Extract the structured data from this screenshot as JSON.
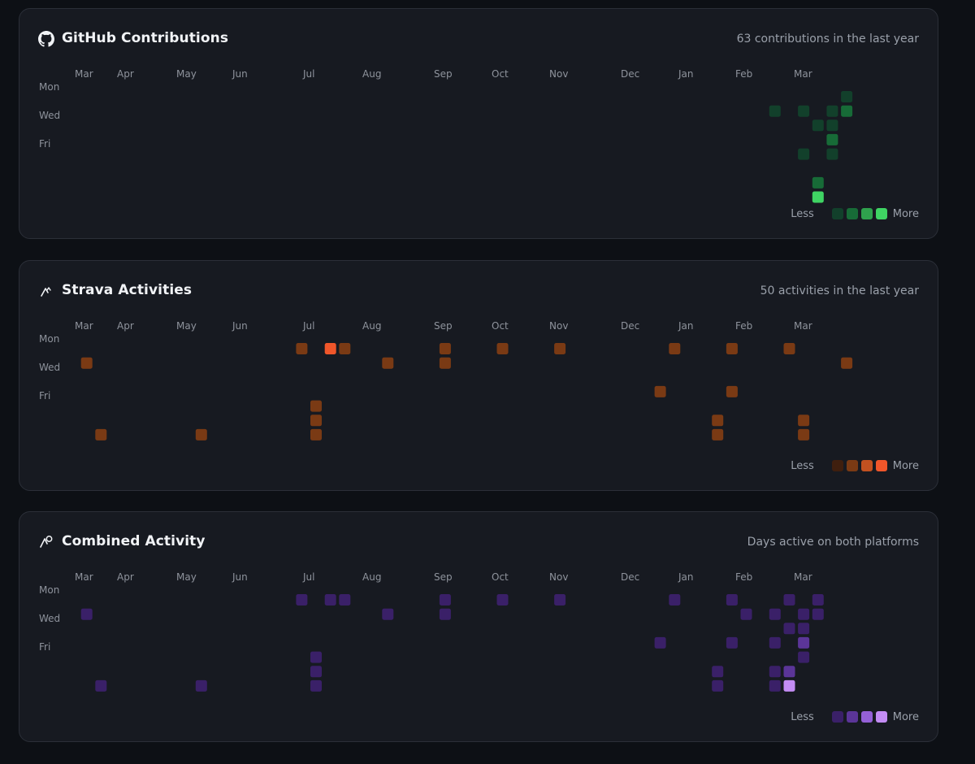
{
  "month_labels": [
    "Mar",
    "Apr",
    "May",
    "Jun",
    "Jul",
    "Aug",
    "Sep",
    "Oct",
    "Nov",
    "Dec",
    "Jan",
    "Feb",
    "Mar"
  ],
  "day_labels": [
    "Mon",
    "Wed",
    "Fri"
  ],
  "legend": {
    "less": "Less",
    "more": "More"
  },
  "panels": [
    {
      "title": "GitHub Contributions",
      "summary": "63 contributions in the last year",
      "icon": "github-icon",
      "colors": [
        "#12402b",
        "#176b37",
        "#2fa24d",
        "#3fd463"
      ],
      "cells": [
        {
          "week": 49,
          "day": 1,
          "level": 0
        },
        {
          "week": 51,
          "day": 1,
          "level": 0
        },
        {
          "week": 51,
          "day": 4,
          "level": 0
        },
        {
          "week": 52,
          "day": 2,
          "level": 0
        },
        {
          "week": 52,
          "day": 6,
          "level": 1
        },
        {
          "week": 52,
          "day": 7,
          "level": 3
        },
        {
          "week": 53,
          "day": 1,
          "level": 0
        },
        {
          "week": 53,
          "day": 2,
          "level": 0
        },
        {
          "week": 53,
          "day": 3,
          "level": 1
        },
        {
          "week": 53,
          "day": 4,
          "level": 0
        },
        {
          "week": 54,
          "day": 0,
          "level": 0
        },
        {
          "week": 54,
          "day": 1,
          "level": 1
        }
      ]
    },
    {
      "title": "Strava Activities",
      "summary": "50 activities in the last year",
      "icon": "strava-icon",
      "colors": [
        "#3f1f0e",
        "#7a3a14",
        "#c25120",
        "#f0562a"
      ],
      "cells": [
        {
          "week": 1,
          "day": 1,
          "level": 1
        },
        {
          "week": 2,
          "day": 6,
          "level": 1
        },
        {
          "week": 9,
          "day": 6,
          "level": 1
        },
        {
          "week": 16,
          "day": 0,
          "level": 1
        },
        {
          "week": 17,
          "day": 4,
          "level": 1
        },
        {
          "week": 17,
          "day": 5,
          "level": 1
        },
        {
          "week": 17,
          "day": 6,
          "level": 1
        },
        {
          "week": 18,
          "day": 0,
          "level": 3
        },
        {
          "week": 19,
          "day": 0,
          "level": 1
        },
        {
          "week": 22,
          "day": 1,
          "level": 1
        },
        {
          "week": 26,
          "day": 0,
          "level": 1
        },
        {
          "week": 26,
          "day": 1,
          "level": 1
        },
        {
          "week": 30,
          "day": 0,
          "level": 1
        },
        {
          "week": 34,
          "day": 0,
          "level": 1
        },
        {
          "week": 41,
          "day": 3,
          "level": 1
        },
        {
          "week": 42,
          "day": 0,
          "level": 1
        },
        {
          "week": 45,
          "day": 5,
          "level": 1
        },
        {
          "week": 45,
          "day": 6,
          "level": 1
        },
        {
          "week": 46,
          "day": 0,
          "level": 1
        },
        {
          "week": 46,
          "day": 3,
          "level": 1
        },
        {
          "week": 50,
          "day": 0,
          "level": 1
        },
        {
          "week": 51,
          "day": 5,
          "level": 1
        },
        {
          "week": 51,
          "day": 6,
          "level": 1
        },
        {
          "week": 54,
          "day": 1,
          "level": 1
        }
      ]
    },
    {
      "title": "Combined Activity",
      "summary": "Days active on both platforms",
      "icon": "combined-activity-icon",
      "colors": [
        "#3a2068",
        "#5b3598",
        "#9460d6",
        "#c38cf4"
      ],
      "cells": [
        {
          "week": 1,
          "day": 1,
          "level": 0
        },
        {
          "week": 2,
          "day": 6,
          "level": 0
        },
        {
          "week": 9,
          "day": 6,
          "level": 0
        },
        {
          "week": 16,
          "day": 0,
          "level": 0
        },
        {
          "week": 17,
          "day": 4,
          "level": 0
        },
        {
          "week": 17,
          "day": 5,
          "level": 0
        },
        {
          "week": 17,
          "day": 6,
          "level": 0
        },
        {
          "week": 18,
          "day": 0,
          "level": 0
        },
        {
          "week": 19,
          "day": 0,
          "level": 0
        },
        {
          "week": 22,
          "day": 1,
          "level": 0
        },
        {
          "week": 26,
          "day": 0,
          "level": 0
        },
        {
          "week": 26,
          "day": 1,
          "level": 0
        },
        {
          "week": 30,
          "day": 0,
          "level": 0
        },
        {
          "week": 34,
          "day": 0,
          "level": 0
        },
        {
          "week": 41,
          "day": 3,
          "level": 0
        },
        {
          "week": 42,
          "day": 0,
          "level": 0
        },
        {
          "week": 45,
          "day": 5,
          "level": 0
        },
        {
          "week": 45,
          "day": 6,
          "level": 0
        },
        {
          "week": 46,
          "day": 0,
          "level": 0
        },
        {
          "week": 46,
          "day": 3,
          "level": 0
        },
        {
          "week": 47,
          "day": 1,
          "level": 0
        },
        {
          "week": 49,
          "day": 1,
          "level": 0
        },
        {
          "week": 49,
          "day": 3,
          "level": 0
        },
        {
          "week": 49,
          "day": 5,
          "level": 0
        },
        {
          "week": 49,
          "day": 6,
          "level": 0
        },
        {
          "week": 50,
          "day": 0,
          "level": 0
        },
        {
          "week": 50,
          "day": 2,
          "level": 0
        },
        {
          "week": 50,
          "day": 5,
          "level": 1
        },
        {
          "week": 50,
          "day": 6,
          "level": 3
        },
        {
          "week": 51,
          "day": 1,
          "level": 0
        },
        {
          "week": 51,
          "day": 2,
          "level": 0
        },
        {
          "week": 51,
          "day": 3,
          "level": 1
        },
        {
          "week": 51,
          "day": 4,
          "level": 0
        },
        {
          "week": 52,
          "day": 0,
          "level": 0
        },
        {
          "week": 52,
          "day": 1,
          "level": 0
        }
      ]
    }
  ]
}
